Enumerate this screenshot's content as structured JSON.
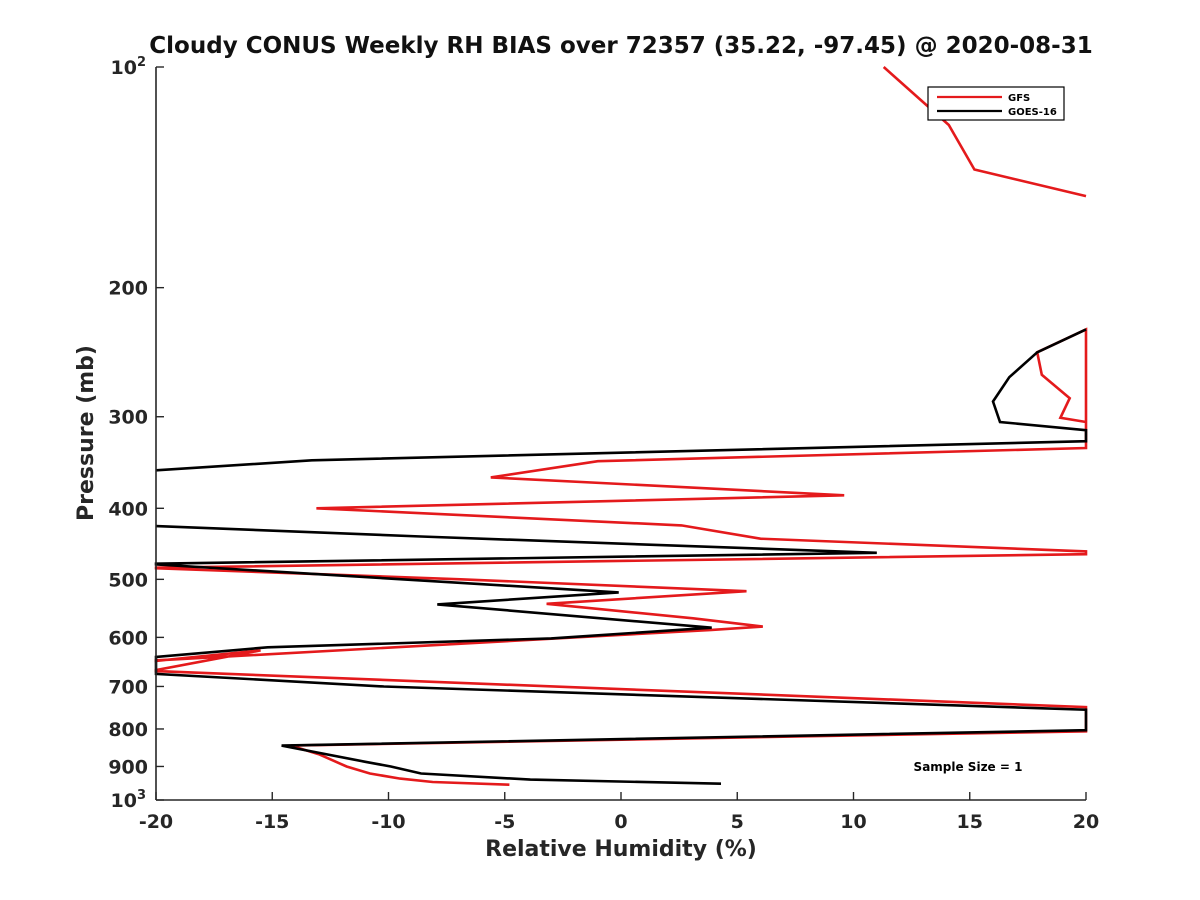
{
  "chart_data": {
    "type": "line",
    "title": "Cloudy CONUS Weekly RH BIAS over 72357 (35.22, -97.45) @ 2020-08-31",
    "xlabel": "Relative Humidity (%)",
    "ylabel": "Pressure (mb)",
    "xlim": [
      -20,
      20
    ],
    "ylim": [
      100,
      1000
    ],
    "y_scale": "log",
    "y_reversed": true,
    "grid": false,
    "legend_position": "top-right",
    "x_ticks": [
      -20,
      -15,
      -10,
      -5,
      0,
      5,
      10,
      15,
      20
    ],
    "x_tick_labels": [
      "-20",
      "-15",
      "-10",
      "-5",
      "0",
      "5",
      "10",
      "15",
      "20"
    ],
    "y_ticks": [
      {
        "value": 100,
        "base": "10",
        "exp": "2"
      },
      {
        "value": 200,
        "label": "200"
      },
      {
        "value": 300,
        "label": "300"
      },
      {
        "value": 400,
        "label": "400"
      },
      {
        "value": 500,
        "label": "500"
      },
      {
        "value": 600,
        "label": "600"
      },
      {
        "value": 700,
        "label": "700"
      },
      {
        "value": 800,
        "label": "800"
      },
      {
        "value": 900,
        "label": "900"
      },
      {
        "value": 1000,
        "base": "10",
        "exp": "3"
      }
    ],
    "annotation": "Sample Size = 1",
    "series": [
      {
        "name": "GFS",
        "color": "#e41a1c",
        "points": [
          [
            11.3,
            100
          ],
          [
            14.1,
            120
          ],
          [
            15.2,
            138
          ],
          [
            20.0,
            150
          ],
          [
            null,
            null
          ],
          [
            20.0,
            305
          ],
          [
            18.9,
            301
          ],
          [
            19.3,
            283
          ],
          [
            18.1,
            263
          ],
          [
            17.9,
            245
          ],
          [
            20.0,
            228
          ],
          [
            20.0,
            330
          ],
          [
            20.0,
            331
          ],
          [
            -1.0,
            345
          ],
          [
            -5.6,
            363
          ],
          [
            9.6,
            384
          ],
          [
            -13.1,
            400
          ],
          [
            2.6,
            422
          ],
          [
            6.0,
            440
          ],
          [
            20.0,
            458
          ],
          [
            20.0,
            462
          ],
          [
            -20.0,
            482
          ],
          [
            -20.0,
            483
          ],
          [
            -6.9,
            500
          ],
          [
            1.0,
            512
          ],
          [
            5.4,
            519
          ],
          [
            -3.2,
            540
          ],
          [
            3.1,
            565
          ],
          [
            6.1,
            580
          ],
          [
            3.9,
            586
          ],
          [
            -20.0,
            645
          ],
          [
            -20.0,
            646
          ],
          [
            -15.5,
            625
          ],
          [
            -20.0,
            665
          ],
          [
            -20.0,
            667
          ],
          [
            20.0,
            747
          ],
          [
            20.0,
            750
          ],
          [
            20.0,
            806
          ],
          [
            -14.2,
            843
          ],
          [
            -13.0,
            866
          ],
          [
            -11.8,
            900
          ],
          [
            -10.8,
            920
          ],
          [
            -9.5,
            935
          ],
          [
            -8.1,
            945
          ],
          [
            -4.8,
            953
          ]
        ]
      },
      {
        "name": "GOES-16",
        "color": "#000000",
        "points": [
          [
            20.0,
            228
          ],
          [
            17.9,
            245
          ],
          [
            16.7,
            265
          ],
          [
            16.0,
            286
          ],
          [
            16.3,
            305
          ],
          [
            20.0,
            313
          ],
          [
            20.0,
            324
          ],
          [
            -13.3,
            344
          ],
          [
            -20.0,
            355
          ],
          [
            null,
            null
          ],
          [
            -20.0,
            423
          ],
          [
            -8.6,
            437
          ],
          [
            11.0,
            460
          ],
          [
            -20.0,
            476
          ],
          [
            -20.0,
            477
          ],
          [
            -0.1,
            521
          ],
          [
            -7.9,
            541
          ],
          [
            3.9,
            582
          ],
          [
            -3.0,
            602
          ],
          [
            -15.2,
            619
          ],
          [
            -20.0,
            638
          ],
          [
            -20.0,
            639
          ],
          [
            -20.0,
            671
          ],
          [
            -20.0,
            673
          ],
          [
            -10.2,
            700
          ],
          [
            20.0,
            753
          ],
          [
            20.0,
            803
          ],
          [
            -14.6,
            843
          ],
          [
            -11.0,
            887
          ],
          [
            -9.9,
            900
          ],
          [
            -8.6,
            920
          ],
          [
            -3.9,
            938
          ],
          [
            4.3,
            950
          ]
        ]
      }
    ]
  }
}
